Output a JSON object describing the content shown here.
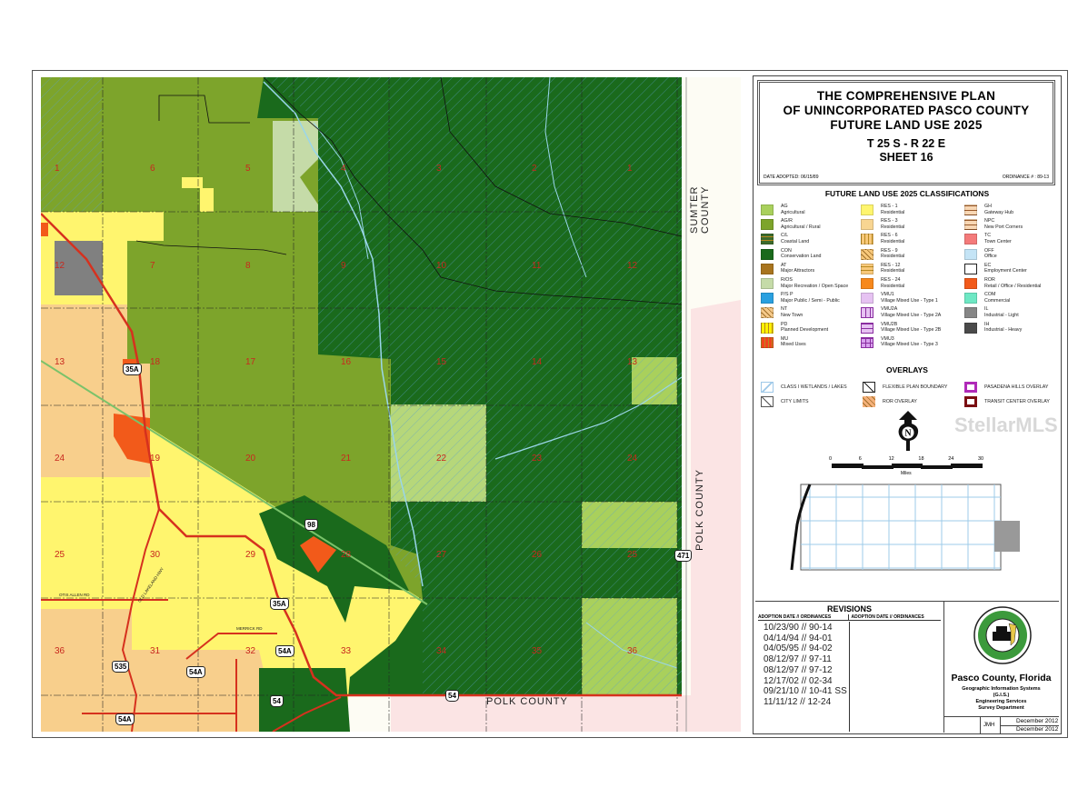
{
  "title": {
    "lines": [
      "THE COMPREHENSIVE PLAN",
      "OF UNINCORPORATED PASCO COUNTY",
      "FUTURE LAND USE 2025"
    ],
    "township": "T 25 S  -  R 22 E",
    "sheet": "SHEET  16",
    "date_adopted": "DATE ADOPTED:  06/15/89",
    "ordinance": "ORDINANCE # :   89-13"
  },
  "legend": {
    "heading": "FUTURE LAND USE 2025 CLASSIFICATIONS",
    "columns": [
      [
        {
          "code": "AG",
          "name": "Agricultural",
          "color": "#a9d05c",
          "pattern": "solid"
        },
        {
          "code": "AG/R",
          "name": "Agricultural / Rural",
          "color": "#7da42b",
          "pattern": "solid"
        },
        {
          "code": "C/L",
          "name": "Coastal Land",
          "color": "#3c6b2c",
          "pattern": "hlines"
        },
        {
          "code": "CON",
          "name": "Conservation Land",
          "color": "#1a6a1c",
          "pattern": "solid"
        },
        {
          "code": "AT",
          "name": "Major Attractors",
          "color": "#a8741e",
          "pattern": "solid"
        },
        {
          "code": "R/OS",
          "name": "Major Recreation / Open Space",
          "color": "#c5dba8",
          "pattern": "solid"
        },
        {
          "code": "P/S P",
          "name": "Major Public / Semi - Public",
          "color": "#2aa0e0",
          "pattern": "solid"
        },
        {
          "code": "NT",
          "name": "New Town",
          "color": "#f5c98a",
          "pattern": "diag"
        },
        {
          "code": "PD",
          "name": "Planned Development",
          "color": "#fff200",
          "pattern": "vlines"
        },
        {
          "code": "MU",
          "name": "Mixed Uses",
          "color": "#f0441e",
          "pattern": "vlines"
        }
      ],
      [
        {
          "code": "RES - 1",
          "name": "Residential",
          "color": "#fff56e",
          "pattern": "solid"
        },
        {
          "code": "RES - 3",
          "name": "Residential",
          "color": "#f8d592",
          "pattern": "solid"
        },
        {
          "code": "RES - 6",
          "name": "Residential",
          "color": "#f8c87a",
          "pattern": "vlines"
        },
        {
          "code": "RES - 9",
          "name": "Residential",
          "color": "#f8c87a",
          "pattern": "diag"
        },
        {
          "code": "RES - 12",
          "name": "Residential",
          "color": "#f8c87a",
          "pattern": "hlines"
        },
        {
          "code": "RES - 24",
          "name": "Residential",
          "color": "#f7881c",
          "pattern": "solid"
        },
        {
          "code": "VMU1",
          "name": "Village Mixed Use - Type 1",
          "color": "#e6c2f2",
          "pattern": "solid"
        },
        {
          "code": "VMU2A",
          "name": "Village Mixed Use - Type 2A",
          "color": "#e6c2f2",
          "pattern": "vlines-purple"
        },
        {
          "code": "VMU2B",
          "name": "Village Mixed Use - Type 2B",
          "color": "#e6c2f2",
          "pattern": "hlines-purple"
        },
        {
          "code": "VMU3",
          "name": "Village Mixed Use - Type 3",
          "color": "#d8a0ee",
          "pattern": "grid-purple"
        }
      ],
      [
        {
          "code": "GH",
          "name": "Gateway Hub",
          "color": "#f8d7b4",
          "pattern": "hlines-brown"
        },
        {
          "code": "NPC",
          "name": "New Port Corners",
          "color": "#f8d7b4",
          "pattern": "hlines-brown"
        },
        {
          "code": "TC",
          "name": "Town Center",
          "color": "#f47a7a",
          "pattern": "solid"
        },
        {
          "code": "OFF",
          "name": "Office",
          "color": "#c4e4f6",
          "pattern": "solid"
        },
        {
          "code": "EC",
          "name": "Employment Center",
          "color": "#ffffff",
          "pattern": "outline"
        },
        {
          "code": "ROR",
          "name": "Retail / Office / Residential",
          "color": "#f25a1a",
          "pattern": "solid"
        },
        {
          "code": "COM",
          "name": "Commercial",
          "color": "#6ee8c4",
          "pattern": "solid"
        },
        {
          "code": "IL",
          "name": "Industrial - Light",
          "color": "#868686",
          "pattern": "solid"
        },
        {
          "code": "IH",
          "name": "Industrial - Heavy",
          "color": "#4a4a4a",
          "pattern": "solid"
        }
      ]
    ]
  },
  "overlays": {
    "heading": "OVERLAYS",
    "items": [
      {
        "label": "CLASS I WETLANDS / LAKES",
        "icon": "wetlands-icon",
        "color": "#9ec8e8"
      },
      {
        "label": "CITY LIMITS",
        "icon": "city-limits-icon",
        "color": "#555555"
      },
      {
        "label": "FLEXIBLE PLAN BOUNDARY",
        "icon": "flexible-plan-icon",
        "color": "#222222"
      },
      {
        "label": "ROR OVERLAY",
        "icon": "ror-overlay-icon",
        "color": "#e07030"
      },
      {
        "label": "PASADENA HILLS OVERLAY",
        "icon": "pasadena-overlay-icon",
        "color": "#b02ab8"
      },
      {
        "label": "TRANSIT CENTER OVERLAY",
        "icon": "transit-overlay-icon",
        "color": "#7a0e12"
      }
    ]
  },
  "north_arrow": {
    "letter": "N"
  },
  "scale": {
    "ticks": [
      "0",
      "6",
      "12",
      "18",
      "24",
      "30"
    ],
    "unit": "Miles"
  },
  "revisions": {
    "heading": "REVISIONS",
    "col_header": "ADOPTION DATE  //  ORDINANCES",
    "entries": [
      "10/23/90  //  90-14",
      "04/14/94  //  94-01",
      "04/05/95  //  94-02",
      "08/12/97  //  97-11",
      "08/12/97  //  97-12",
      "12/17/02  //  02-34",
      "09/21/10  //  10-41 SS",
      "11/11/12  //  12-24"
    ]
  },
  "agency": {
    "seal_text": "PASCO COUNTY FLORIDA",
    "name": "Pasco County, Florida",
    "lines": [
      "Geographic Information Systems",
      "(G.I.S.)",
      "Engineering Services",
      "Survey Department"
    ],
    "prepared_by": "JMH",
    "date_created": "December 2012",
    "date_printed": "December 2012"
  },
  "map": {
    "colors": {
      "ag": "#a9d05c",
      "agr": "#7da42b",
      "con": "#1a6a1c",
      "ros": "#c5dba8",
      "res1": "#fff56e",
      "res3": "#f8cf8c",
      "ror": "#f25a1a",
      "il": "#808080",
      "polk": "#fbe4e4",
      "road": "#d6311e",
      "water": "#9ad6ea",
      "section": "#c8281e"
    },
    "sections": [
      [
        "1",
        "6",
        "5",
        "4",
        "3",
        "2",
        "1"
      ],
      [
        "12",
        "7",
        "8",
        "9",
        "10",
        "11",
        "12"
      ],
      [
        "13",
        "18",
        "17",
        "16",
        "15",
        "14",
        "13"
      ],
      [
        "24",
        "19",
        "20",
        "21",
        "22",
        "23",
        "24"
      ],
      [
        "25",
        "30",
        "29",
        "28",
        "27",
        "26",
        "25"
      ],
      [
        "36",
        "31",
        "32",
        "33",
        "34",
        "35",
        "36"
      ]
    ],
    "county_labels": {
      "north_east": "SUMTER  COUNTY",
      "east": "POLK  COUNTY",
      "south": "POLK   COUNTY"
    },
    "shields": [
      "35A",
      "35A",
      "98",
      "535",
      "54A",
      "54A",
      "54",
      "54",
      "54A",
      "471"
    ],
    "streets": [
      "OTIS ALLEN RD",
      "OLD LAKELAND HWY",
      "MERRICK RD"
    ]
  },
  "watermark": "StellarMLS"
}
